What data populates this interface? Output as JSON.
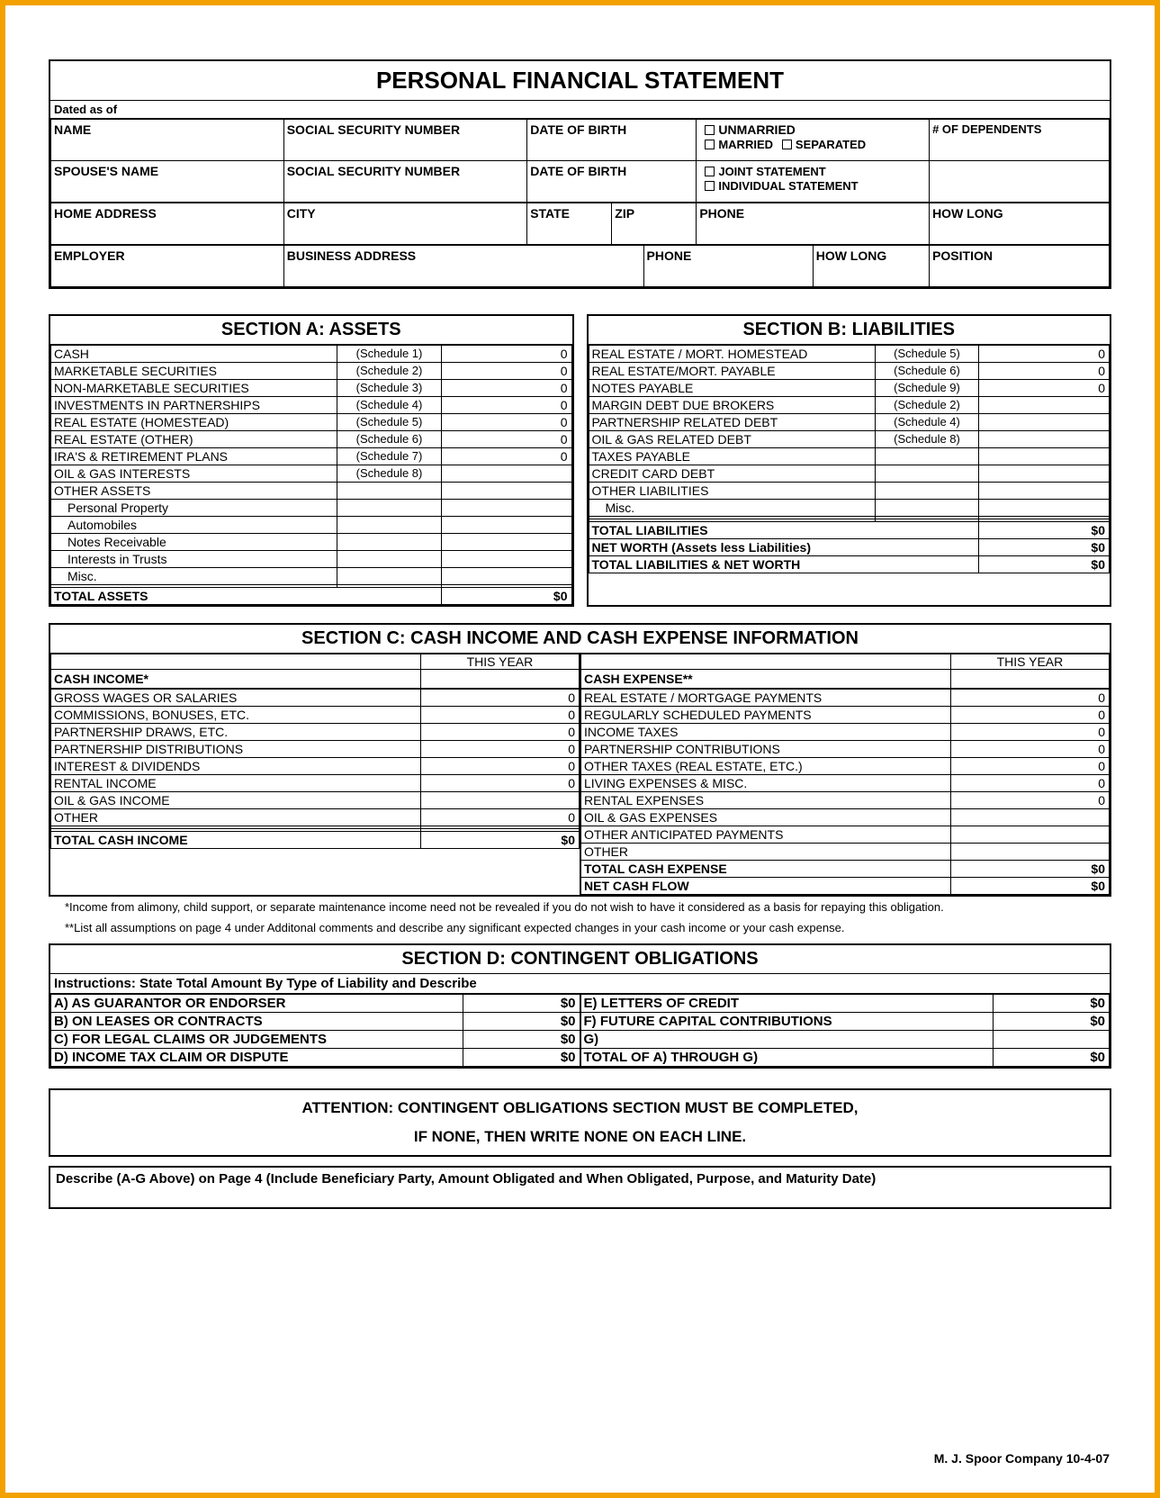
{
  "title": "PERSONAL FINANCIAL STATEMENT",
  "dated_label": "Dated as of",
  "header": {
    "name": "NAME",
    "ssn": "SOCIAL SECURITY NUMBER",
    "dob": "DATE OF BIRTH",
    "unmarried": "UNMARRIED",
    "married": "MARRIED",
    "separated": "SEPARATED",
    "dependents": "# OF DEPENDENTS",
    "spouse": "SPOUSE'S NAME",
    "joint": "JOINT STATEMENT",
    "individual": "INDIVIDUAL STATEMENT",
    "home": "HOME ADDRESS",
    "city": "CITY",
    "state": "STATE",
    "zip": "ZIP",
    "phone": "PHONE",
    "howlong": "HOW LONG",
    "employer": "EMPLOYER",
    "bizaddr": "BUSINESS ADDRESS",
    "position": "POSITION"
  },
  "sectA": {
    "title": "SECTION  A:  ASSETS",
    "rows": [
      {
        "label": "CASH",
        "sched": "(Schedule 1)",
        "val": "0"
      },
      {
        "label": "MARKETABLE  SECURITIES",
        "sched": "(Schedule 2)",
        "val": "0"
      },
      {
        "label": "NON-MARKETABLE  SECURITIES",
        "sched": "(Schedule 3)",
        "val": "0"
      },
      {
        "label": "INVESTMENTS  IN  PARTNERSHIPS",
        "sched": "(Schedule 4)",
        "val": "0"
      },
      {
        "label": "REAL  ESTATE  (HOMESTEAD)",
        "sched": "(Schedule 5)",
        "val": "0"
      },
      {
        "label": "REAL  ESTATE  (OTHER)",
        "sched": "(Schedule 6)",
        "val": "0"
      },
      {
        "label": "IRA'S  &  RETIREMENT  PLANS",
        "sched": "(Schedule 7)",
        "val": "0"
      },
      {
        "label": "OIL  &  GAS  INTERESTS",
        "sched": "(Schedule 8)",
        "val": ""
      },
      {
        "label": "OTHER  ASSETS",
        "sched": "",
        "val": ""
      },
      {
        "label": "Personal Property",
        "sched": "",
        "val": "",
        "indent": true
      },
      {
        "label": "Automobiles",
        "sched": "",
        "val": "",
        "indent": true
      },
      {
        "label": "Notes Receivable",
        "sched": "",
        "val": "",
        "indent": true
      },
      {
        "label": "Interests in Trusts",
        "sched": "",
        "val": "",
        "indent": true
      },
      {
        "label": "Misc.",
        "sched": "",
        "val": "",
        "indent": true
      },
      {
        "label": "",
        "sched": "",
        "val": ""
      }
    ],
    "total_label": "TOTAL  ASSETS",
    "total_val": "$0"
  },
  "sectB": {
    "title": "SECTION  B:  LIABILITIES",
    "rows": [
      {
        "label": "REAL  ESTATE / MORT.  HOMESTEAD",
        "sched": "(Schedule 5)",
        "val": "0"
      },
      {
        "label": "REAL  ESTATE/MORT.  PAYABLE",
        "sched": "(Schedule 6)",
        "val": "0"
      },
      {
        "label": "NOTES  PAYABLE",
        "sched": "(Schedule 9)",
        "val": "0"
      },
      {
        "label": "MARGIN  DEBT  DUE  BROKERS",
        "sched": "(Schedule 2)",
        "val": ""
      },
      {
        "label": "PARTNERSHIP  RELATED  DEBT",
        "sched": "(Schedule 4)",
        "val": ""
      },
      {
        "label": "OIL  &  GAS  RELATED  DEBT",
        "sched": "(Schedule 8)",
        "val": ""
      },
      {
        "label": "TAXES  PAYABLE",
        "sched": "",
        "val": ""
      },
      {
        "label": "CREDIT  CARD  DEBT",
        "sched": "",
        "val": ""
      },
      {
        "label": "OTHER  LIABILITIES",
        "sched": "",
        "val": ""
      },
      {
        "label": "Misc.",
        "sched": "",
        "val": "",
        "indent": true
      },
      {
        "label": "",
        "sched": "",
        "val": ""
      },
      {
        "label": "",
        "sched": "",
        "val": ""
      }
    ],
    "totals": [
      {
        "label": "TOTAL  LIABILITIES",
        "val": "$0"
      },
      {
        "label": "NET  WORTH   (Assets less Liabilities)",
        "val": "$0"
      },
      {
        "label": "TOTAL  LIABILITIES  &  NET  WORTH",
        "val": "$0"
      }
    ]
  },
  "sectC": {
    "title": "SECTION  C:  CASH  INCOME  AND  CASH  EXPENSE  INFORMATION",
    "thisyear": "THIS  YEAR",
    "income_hdr": "CASH  INCOME*",
    "income": [
      {
        "label": "GROSS  WAGES  OR  SALARIES",
        "val": "0"
      },
      {
        "label": "COMMISSIONS,  BONUSES,  ETC.",
        "val": "0"
      },
      {
        "label": "PARTNERSHIP  DRAWS,  ETC.",
        "val": "0"
      },
      {
        "label": "PARTNERSHIP  DISTRIBUTIONS",
        "val": "0"
      },
      {
        "label": "INTEREST  &  DIVIDENDS",
        "val": "0"
      },
      {
        "label": "RENTAL  INCOME",
        "val": "0"
      },
      {
        "label": "OIL  &  GAS  INCOME",
        "val": ""
      },
      {
        "label": "OTHER",
        "val": "0"
      },
      {
        "label": "",
        "val": ""
      },
      {
        "label": "",
        "val": ""
      }
    ],
    "income_total_label": "TOTAL  CASH  INCOME",
    "income_total_val": "$0",
    "expense_hdr": "CASH  EXPENSE**",
    "expense": [
      {
        "label": "REAL  ESTATE / MORTGAGE  PAYMENTS",
        "val": "0"
      },
      {
        "label": "REGULARLY  SCHEDULED  PAYMENTS",
        "val": "0"
      },
      {
        "label": "INCOME  TAXES",
        "val": "0"
      },
      {
        "label": "PARTNERSHIP  CONTRIBUTIONS",
        "val": "0"
      },
      {
        "label": "OTHER  TAXES  (REAL  ESTATE,  ETC.)",
        "val": "0"
      },
      {
        "label": "LIVING  EXPENSES  &  MISC.",
        "val": "0"
      },
      {
        "label": "RENTAL  EXPENSES",
        "val": "0"
      },
      {
        "label": "OIL  &  GAS  EXPENSES",
        "val": ""
      },
      {
        "label": "OTHER  ANTICIPATED  PAYMENTS",
        "val": ""
      },
      {
        "label": "OTHER",
        "val": ""
      }
    ],
    "expense_totals": [
      {
        "label": "TOTAL  CASH  EXPENSE",
        "val": "$0"
      },
      {
        "label": "NET  CASH  FLOW",
        "val": "$0"
      }
    ],
    "note1": "*Income from alimony, child support, or separate maintenance income need not be revealed if you do not wish to have it considered as a basis for repaying this obligation.",
    "note2": "**List all assumptions on page 4 under Additonal  comments and describe any significant expected changes in your cash income or your cash expense."
  },
  "sectD": {
    "title": "SECTION D:  CONTINGENT  OBLIGATIONS",
    "instr": "Instructions: State Total Amount By Type of Liability and Describe",
    "left": [
      {
        "label": "A) AS  GUARANTOR  OR  ENDORSER",
        "val": "$0"
      },
      {
        "label": "B) ON  LEASES  OR  CONTRACTS",
        "val": "$0"
      },
      {
        "label": "C) FOR  LEGAL  CLAIMS  OR  JUDGEMENTS",
        "val": "$0"
      },
      {
        "label": "D) INCOME  TAX  CLAIM  OR  DISPUTE",
        "val": "$0"
      }
    ],
    "right": [
      {
        "label": "E) LETTERS  OF  CREDIT",
        "val": "$0"
      },
      {
        "label": "F) FUTURE  CAPITAL  CONTRIBUTIONS",
        "val": "$0"
      },
      {
        "label": "G)",
        "val": ""
      },
      {
        "label": "TOTAL  OF  A)  THROUGH  G)",
        "val": "$0"
      }
    ]
  },
  "attn1": "ATTENTION:  CONTINGENT  OBLIGATIONS  SECTION  MUST  BE  COMPLETED,",
  "attn2": "IF  NONE,  THEN  WRITE  NONE  ON  EACH  LINE.",
  "describe": "Describe (A-G Above) on Page 4 (Include Beneficiary Party, Amount Obligated and When Obligated, Purpose, and Maturity Date)",
  "footer": "M. J. Spoor Company   10-4-07"
}
